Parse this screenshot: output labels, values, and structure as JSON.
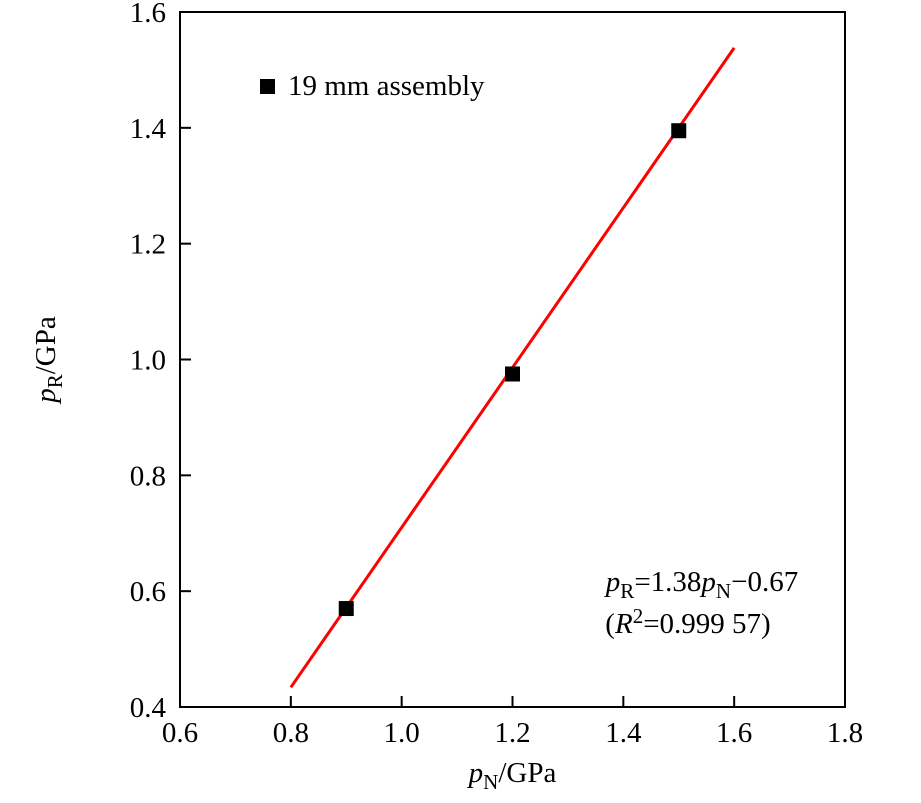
{
  "chart_data": {
    "type": "scatter",
    "title": "",
    "xlabel": {
      "var": "p",
      "sub": "N",
      "unit": "/GPa"
    },
    "ylabel": {
      "var": "p",
      "sub": "R",
      "unit": "/GPa"
    },
    "xlim": [
      0.6,
      1.8
    ],
    "ylim": [
      0.4,
      1.6
    ],
    "xticks": [
      0.6,
      0.8,
      1.0,
      1.2,
      1.4,
      1.6,
      1.8
    ],
    "yticks": [
      0.4,
      0.6,
      0.8,
      1.0,
      1.2,
      1.4,
      1.6
    ],
    "tick_decimals": 1,
    "grid": false,
    "axis_color": "#000000",
    "series": [
      {
        "name": "19 mm assembly",
        "marker": "square",
        "color": "#000000",
        "points": [
          [
            0.9,
            0.57
          ],
          [
            1.2,
            0.975
          ],
          [
            1.5,
            1.395
          ]
        ]
      }
    ],
    "fit_line": {
      "slope": 1.38,
      "intercept": -0.67,
      "x_start": 0.8,
      "x_end": 1.6,
      "color": "#ff0000"
    },
    "legend": {
      "position": "top-left-inside",
      "label": "19 mm assembly",
      "marker_color": "#000000"
    },
    "annotation": {
      "line1": {
        "var1": "p",
        "sub1": "R",
        "mid": "=1.38",
        "var2": "p",
        "sub2": "N",
        "post": "−0.67"
      },
      "line2": {
        "open": "(",
        "var": "R",
        "sup": "2",
        "rest": "=0.999 57)"
      }
    }
  }
}
